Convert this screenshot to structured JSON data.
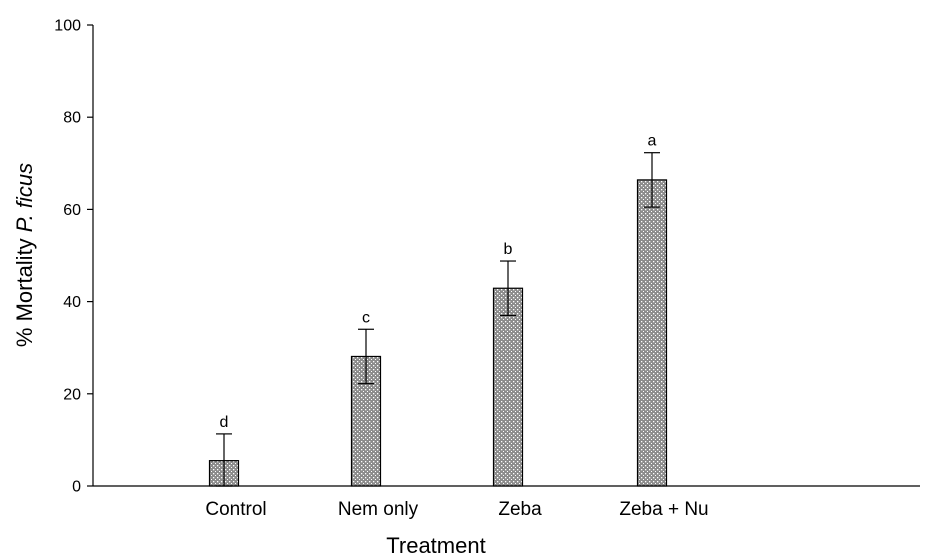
{
  "chart_data": {
    "type": "bar",
    "title": "",
    "xlabel": "Treatment",
    "ylabel": {
      "prefix": "% Mortality ",
      "italic": "P. ficus"
    },
    "ylim": [
      0,
      100
    ],
    "yticks": [
      "0",
      "20",
      "40",
      "60",
      "80",
      "100"
    ],
    "grid": false,
    "legend": "none",
    "categories": [
      "Control",
      "Nem only",
      "Zeba",
      "Zeba + Nu"
    ],
    "values": [
      5.5,
      28.1,
      42.9,
      66.4
    ],
    "errors": [
      5.8,
      5.9,
      5.9,
      5.9
    ],
    "significance": [
      "d",
      "c",
      "b",
      "a"
    ],
    "bar_fill": "#8c8c8c",
    "bar_pattern": "dotted"
  }
}
